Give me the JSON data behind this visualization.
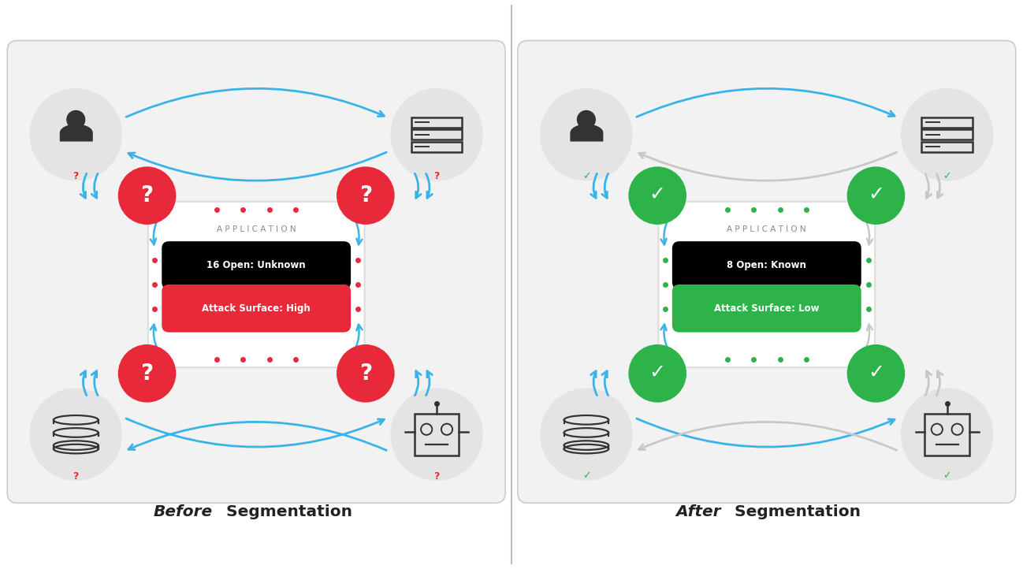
{
  "bg_color": "#ffffff",
  "panel_bg": "#f2f2f2",
  "before_title_italic": "Before",
  "before_title_rest": " Segmentation",
  "after_title_italic": "After",
  "after_title_rest": " Segmentation",
  "app_label": "A P P L I C A T I O N",
  "before_line1": "16 Open: Unknown",
  "before_line2": "Attack Surface: High",
  "after_line1": "8 Open: Known",
  "after_line2": "Attack Surface: Low",
  "red_color": "#e8293a",
  "green_color": "#2db34a",
  "blue_arrow_color": "#3ab4e8",
  "gray_arrow_color": "#c8c8c8",
  "dot_red": "#e8293a",
  "dot_green": "#2db34a",
  "dot_gray": "#aaaaaa",
  "icon_circle_color": "#e4e4e4",
  "border_color": "#cccccc",
  "title_color": "#222222",
  "app_text_color": "#888888",
  "icon_color": "#333333"
}
